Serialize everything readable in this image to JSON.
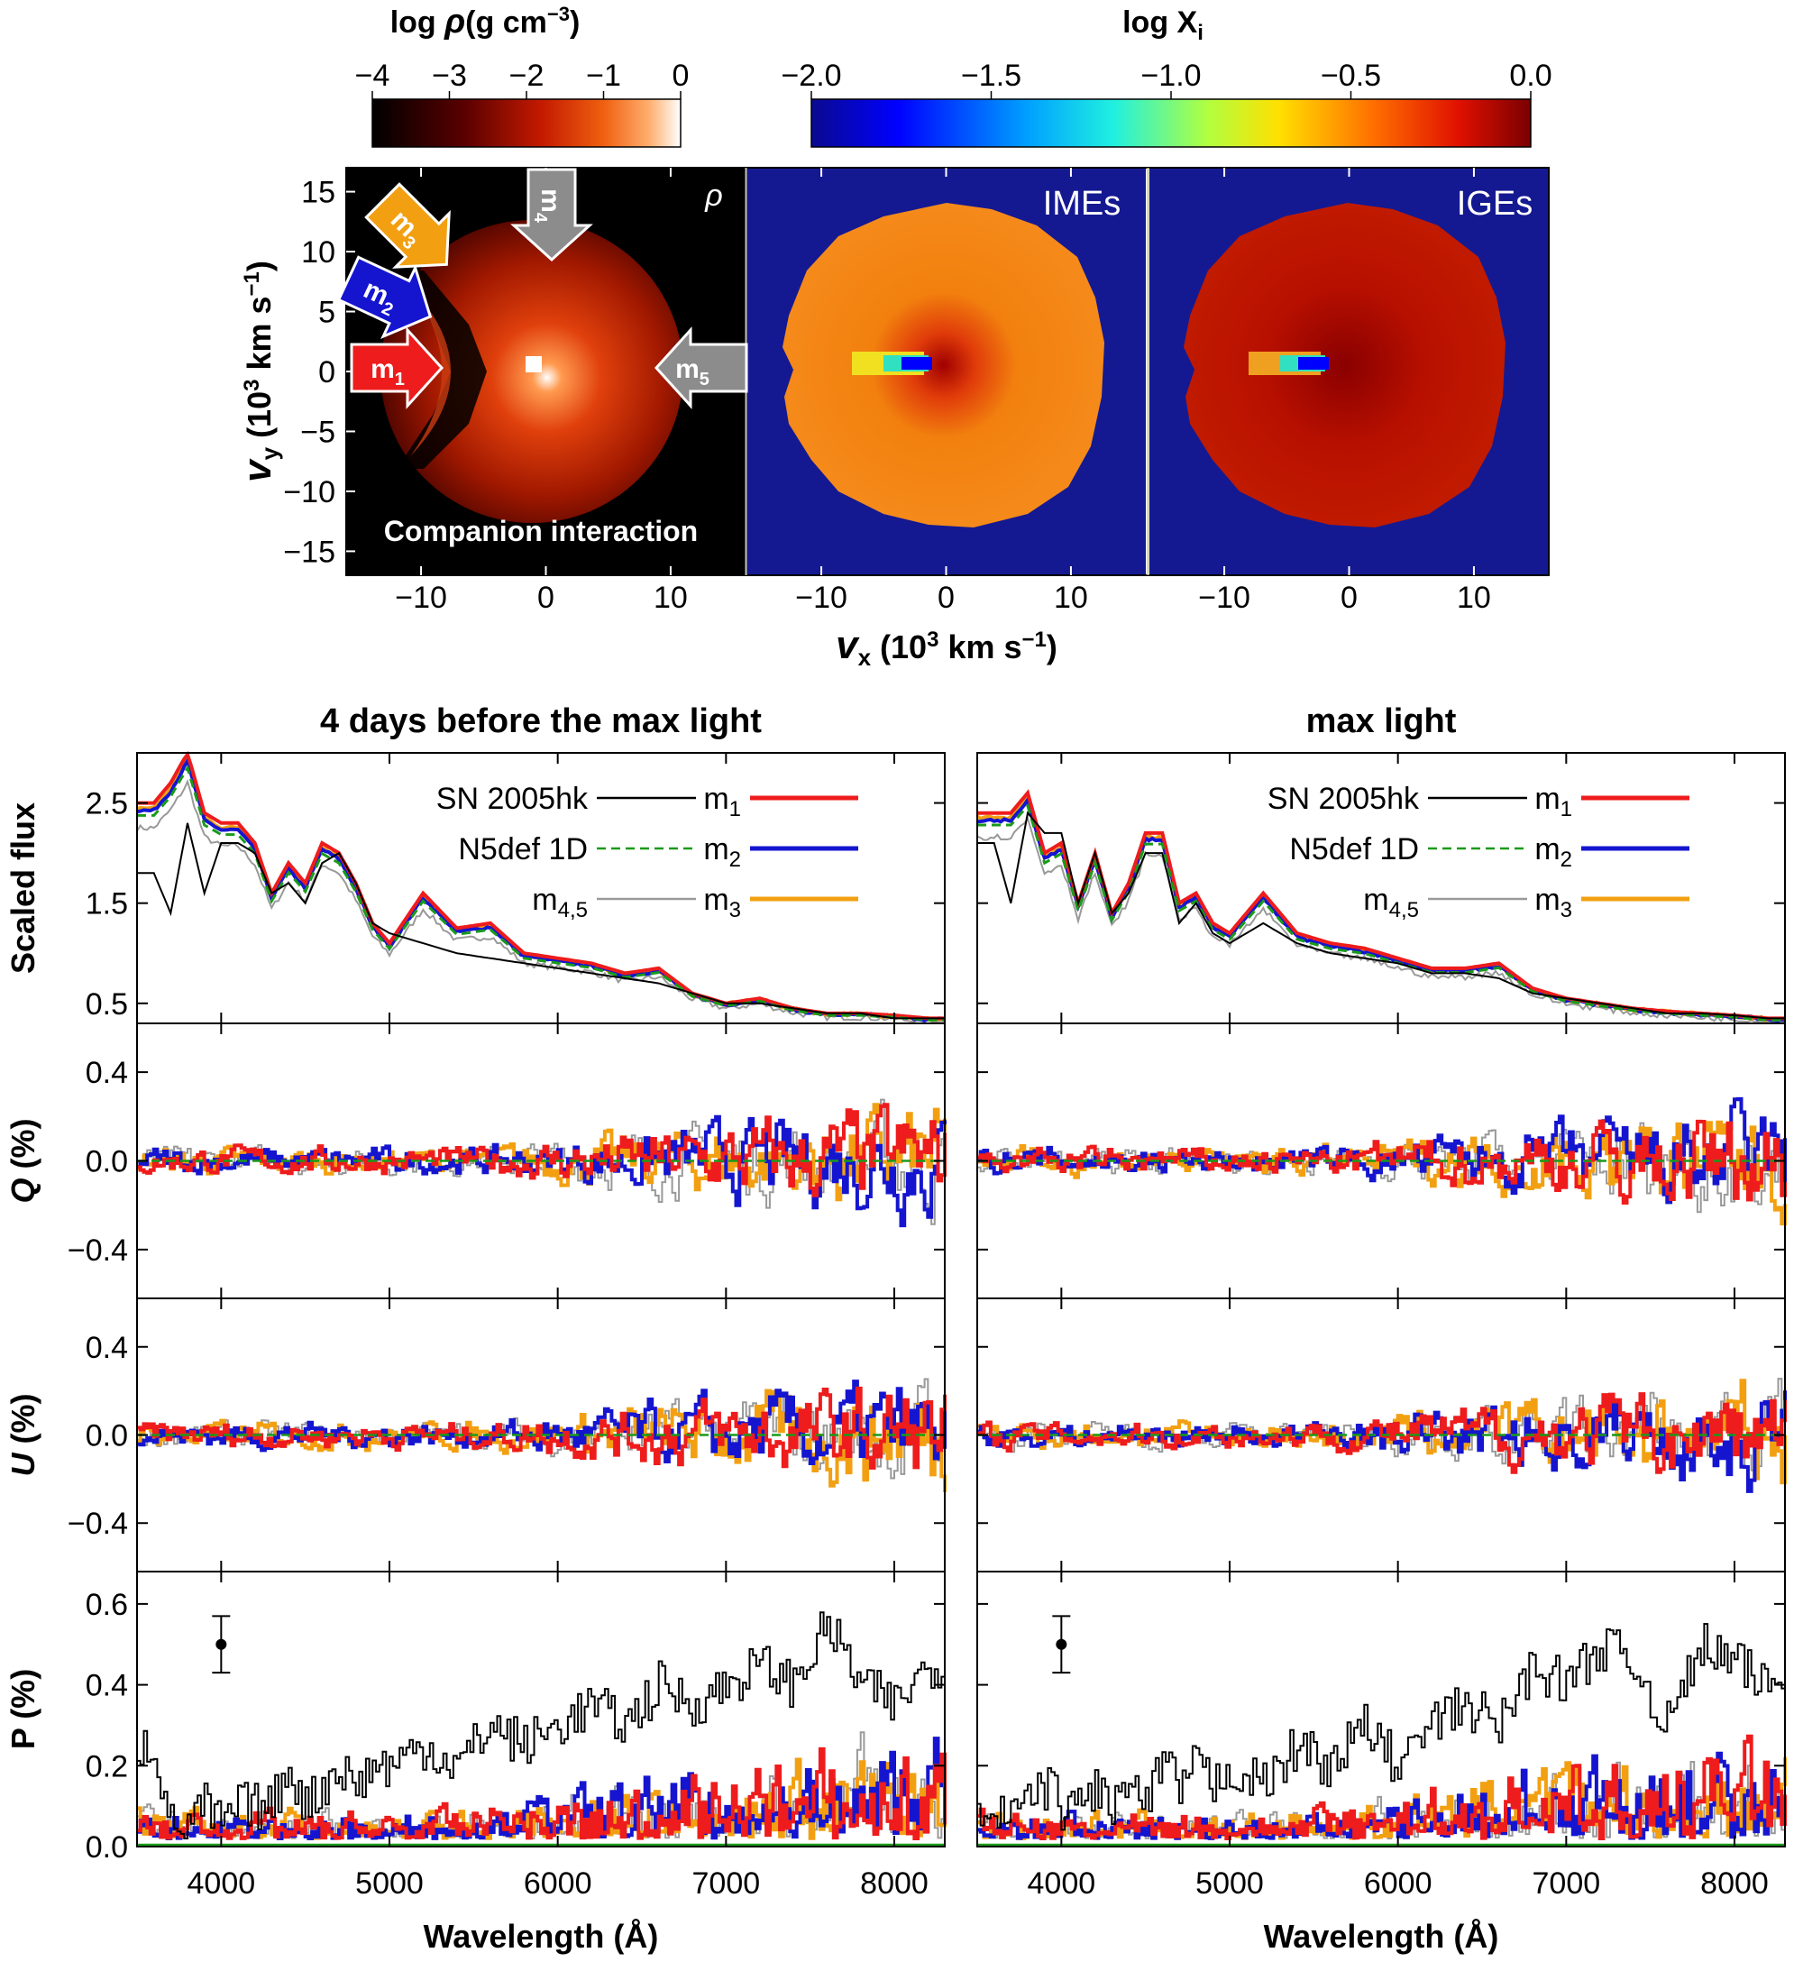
{
  "colorbars": [
    {
      "label_main": "log ",
      "label_sym": "ρ",
      "label_unit": "(g cm",
      "label_exp": "−3",
      "label_close": ")",
      "ticks": [
        "−4",
        "−3",
        "−2",
        "−1",
        "0"
      ],
      "colormap": "heat"
    },
    {
      "label_main": "log X",
      "label_sub": "i",
      "ticks": [
        "−2.0",
        "−1.5",
        "−1.0",
        "−0.5",
        "0.0"
      ],
      "colormap": "jet"
    }
  ],
  "maps": {
    "panels": [
      {
        "corner_label": "ρ",
        "background": "#000000"
      },
      {
        "corner_label": "IMEs",
        "background": "#141991"
      },
      {
        "corner_label": "IGEs",
        "background": "#141991"
      }
    ],
    "annotation": "Companion interaction",
    "ylabel": {
      "main": "v",
      "sub": "y",
      "open": " (10",
      "exp": "3",
      "mid": " km s",
      "exp2": "−1",
      "close": ")"
    },
    "xlabel": {
      "main": "v",
      "sub": "x",
      "open": " (10",
      "exp": "3",
      "mid": " km s",
      "exp2": "−1",
      "close": ")"
    },
    "xticks": [
      "−10",
      "0",
      "10"
    ],
    "yticks": [
      "15",
      "10",
      "5",
      "0",
      "−5",
      "−10",
      "−15"
    ],
    "arrows": [
      {
        "name": "m",
        "sub": "1",
        "color": "#ee1c1c"
      },
      {
        "name": "m",
        "sub": "2",
        "color": "#1515d0"
      },
      {
        "name": "m",
        "sub": "3",
        "color": "#f2a012"
      },
      {
        "name": "m",
        "sub": "4",
        "color": "#8c8c8c"
      },
      {
        "name": "m",
        "sub": "5",
        "color": "#8c8c8c"
      }
    ]
  },
  "spectra": {
    "columns": [
      {
        "title": "4 days before the max light"
      },
      {
        "title": "max light"
      }
    ],
    "rows": [
      {
        "ylabel": "Scaled  flux",
        "yticks": [
          "2.5",
          "1.5",
          "0.5"
        ],
        "italic": false
      },
      {
        "ylabel": "Q (%)",
        "yticks": [
          "0.4",
          "0.0",
          "−0.4"
        ],
        "italic": true
      },
      {
        "ylabel": "U (%)",
        "yticks": [
          "0.4",
          "0.0",
          "−0.4"
        ],
        "italic": true
      },
      {
        "ylabel": "P  (%)",
        "yticks": [
          "0.6",
          "0.4",
          "0.2",
          "0.0"
        ],
        "italic": false
      }
    ],
    "xticks": [
      "4000",
      "5000",
      "6000",
      "7000",
      "8000"
    ],
    "xlabel": "Wavelength (Å)",
    "legend": [
      {
        "label": "SN 2005hk",
        "color": "#000000",
        "style": "solid"
      },
      {
        "label": "N5def 1D",
        "color": "#1a9a1a",
        "style": "dashed"
      },
      {
        "label": "m",
        "sub": "4,5",
        "color": "#999999",
        "style": "solid"
      },
      {
        "label": "m",
        "sub": "1",
        "color": "#ee1c1c",
        "style": "solid"
      },
      {
        "label": "m",
        "sub": "2",
        "color": "#1515d0",
        "style": "solid"
      },
      {
        "label": "m",
        "sub": "3",
        "color": "#f2a012",
        "style": "solid"
      }
    ]
  },
  "chart_data": [
    {
      "type": "heatmap",
      "panel": "density map",
      "xlim": [
        -16,
        16
      ],
      "ylim": [
        -17,
        17
      ],
      "color_scale": [
        -4,
        0
      ],
      "note_corner": "ρ",
      "text": "Companion interaction"
    },
    {
      "type": "heatmap",
      "panel": "IMEs",
      "xlim": [
        -16,
        16
      ],
      "ylim": [
        -17,
        17
      ],
      "color_scale": [
        -2.0,
        0.0
      ]
    },
    {
      "type": "heatmap",
      "panel": "IGEs",
      "xlim": [
        -16,
        16
      ],
      "ylim": [
        -17,
        17
      ],
      "color_scale": [
        -2.0,
        0.0
      ]
    },
    {
      "type": "line",
      "panels": [
        "Scaled flux",
        "Q",
        "U",
        "P"
      ],
      "xlim": [
        3500,
        8300
      ],
      "ylim": {
        "flux": [
          0.3,
          3.0
        ],
        "Q": [
          -0.62,
          0.62
        ],
        "U": [
          -0.62,
          0.62
        ],
        "P": [
          0.0,
          0.68
        ]
      },
      "epochs": {
        "4 days before the max light": {
          "x": [
            3600,
            3700,
            3800,
            3900,
            4000,
            4100,
            4200,
            4300,
            4400,
            4500,
            4600,
            4700,
            4800,
            4900,
            5000,
            5200,
            5400,
            5600,
            5800,
            6000,
            6200,
            6400,
            6600,
            6800,
            7000,
            7200,
            7400,
            7600,
            7800,
            8000,
            8200
          ],
          "flux_SN2005hk": [
            1.8,
            1.4,
            2.3,
            1.6,
            2.1,
            2.1,
            2.0,
            1.6,
            1.7,
            1.5,
            1.9,
            2.0,
            1.7,
            1.3,
            1.2,
            1.1,
            1.0,
            0.95,
            0.9,
            0.85,
            0.8,
            0.75,
            0.7,
            0.6,
            0.5,
            0.5,
            0.45,
            0.4,
            0.4,
            0.35,
            0.35
          ],
          "flux_m1": [
            2.5,
            2.7,
            3.0,
            2.4,
            2.3,
            2.3,
            2.1,
            1.6,
            1.9,
            1.7,
            2.1,
            2.0,
            1.7,
            1.3,
            1.1,
            1.6,
            1.25,
            1.3,
            1.0,
            0.95,
            0.9,
            0.8,
            0.85,
            0.6,
            0.5,
            0.55,
            0.45,
            0.4,
            0.4,
            0.38,
            0.35
          ],
          "P_SN2005hk": [
            0.25,
            0.05,
            0.05,
            0.1,
            0.05,
            0.1,
            0.1,
            0.1,
            0.2,
            0.1,
            0.15,
            0.2,
            0.15,
            0.2,
            0.2,
            0.25,
            0.2,
            0.3,
            0.25,
            0.3,
            0.35,
            0.3,
            0.4,
            0.35,
            0.4,
            0.45,
            0.4,
            0.55,
            0.4,
            0.35,
            0.45
          ],
          "P_reference_point": {
            "x": 4000,
            "y": 0.5,
            "err": 0.07
          }
        },
        "max light": {
          "x": [
            3600,
            3700,
            3800,
            3900,
            4000,
            4100,
            4200,
            4300,
            4400,
            4500,
            4600,
            4700,
            4800,
            4900,
            5000,
            5200,
            5400,
            5600,
            5800,
            6000,
            6200,
            6400,
            6600,
            6800,
            7000,
            7200,
            7400,
            7600,
            7800,
            8000,
            8200
          ],
          "flux_SN2005hk": [
            2.1,
            1.5,
            2.4,
            2.2,
            2.2,
            1.5,
            2.0,
            1.4,
            1.6,
            2.0,
            2.0,
            1.3,
            1.5,
            1.2,
            1.1,
            1.3,
            1.1,
            1.0,
            0.95,
            0.9,
            0.8,
            0.8,
            0.75,
            0.6,
            0.55,
            0.5,
            0.45,
            0.4,
            0.4,
            0.38,
            0.35
          ],
          "flux_m1": [
            2.4,
            2.4,
            2.6,
            2.0,
            2.1,
            1.5,
            2.0,
            1.4,
            1.7,
            2.2,
            2.2,
            1.5,
            1.6,
            1.3,
            1.2,
            1.6,
            1.2,
            1.1,
            1.05,
            0.95,
            0.85,
            0.85,
            0.9,
            0.65,
            0.55,
            0.5,
            0.45,
            0.42,
            0.4,
            0.38,
            0.35
          ],
          "P_SN2005hk": [
            0.05,
            0.1,
            0.1,
            0.15,
            0.1,
            0.1,
            0.15,
            0.1,
            0.15,
            0.1,
            0.2,
            0.15,
            0.2,
            0.15,
            0.2,
            0.15,
            0.25,
            0.2,
            0.3,
            0.2,
            0.3,
            0.35,
            0.3,
            0.45,
            0.4,
            0.5,
            0.45,
            0.3,
            0.5,
            0.45,
            0.4
          ],
          "P_reference_point": {
            "x": 4000,
            "y": 0.5,
            "err": 0.07
          }
        }
      }
    }
  ]
}
